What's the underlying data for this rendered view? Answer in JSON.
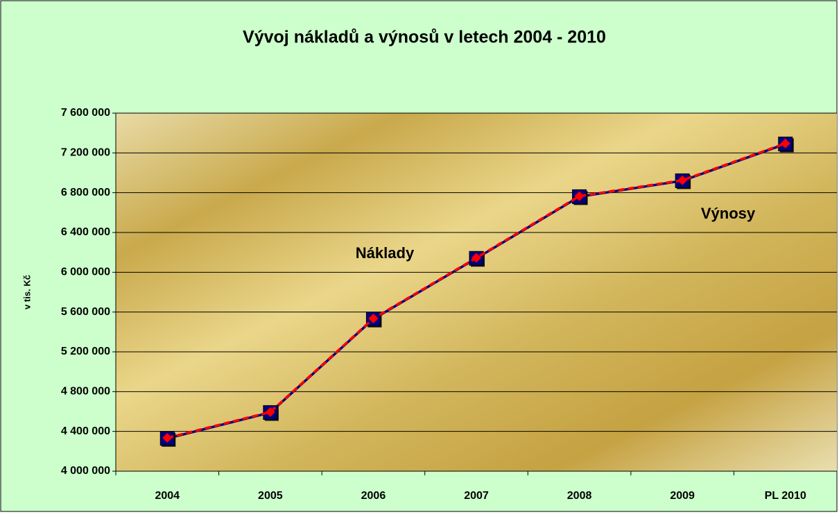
{
  "chart_data": {
    "type": "line",
    "title": "Vývoj nákladů a výnosů v letech 2004 - 2010",
    "y_label": "v tis. Kč",
    "categories": [
      "2004",
      "2005",
      "2006",
      "2007",
      "2008",
      "2009",
      "PL 2010"
    ],
    "series": [
      {
        "name": "Náklady",
        "color": "#000080",
        "marker": "square",
        "values": [
          4330000,
          4590000,
          5530000,
          6140000,
          6760000,
          6920000,
          7290000
        ]
      },
      {
        "name": "Výnosy",
        "color": "#ff0000",
        "marker": "diamond",
        "dashed": true,
        "values": [
          4335000,
          4595000,
          5535000,
          6145000,
          6765000,
          6925000,
          7295000
        ]
      }
    ],
    "ylim": [
      4000000,
      7600000
    ],
    "yticks": [
      {
        "value": 4000000,
        "label": "4 000 000"
      },
      {
        "value": 4400000,
        "label": "4 400 000"
      },
      {
        "value": 4800000,
        "label": "4 800 000"
      },
      {
        "value": 5200000,
        "label": "5 200 000"
      },
      {
        "value": 5600000,
        "label": "5 600 000"
      },
      {
        "value": 6000000,
        "label": "6 000 000"
      },
      {
        "value": 6400000,
        "label": "6 400 000"
      },
      {
        "value": 6800000,
        "label": "6 800 000"
      },
      {
        "value": 7200000,
        "label": "7 200 000"
      },
      {
        "value": 7600000,
        "label": "7 600 000"
      }
    ],
    "grid": true
  }
}
